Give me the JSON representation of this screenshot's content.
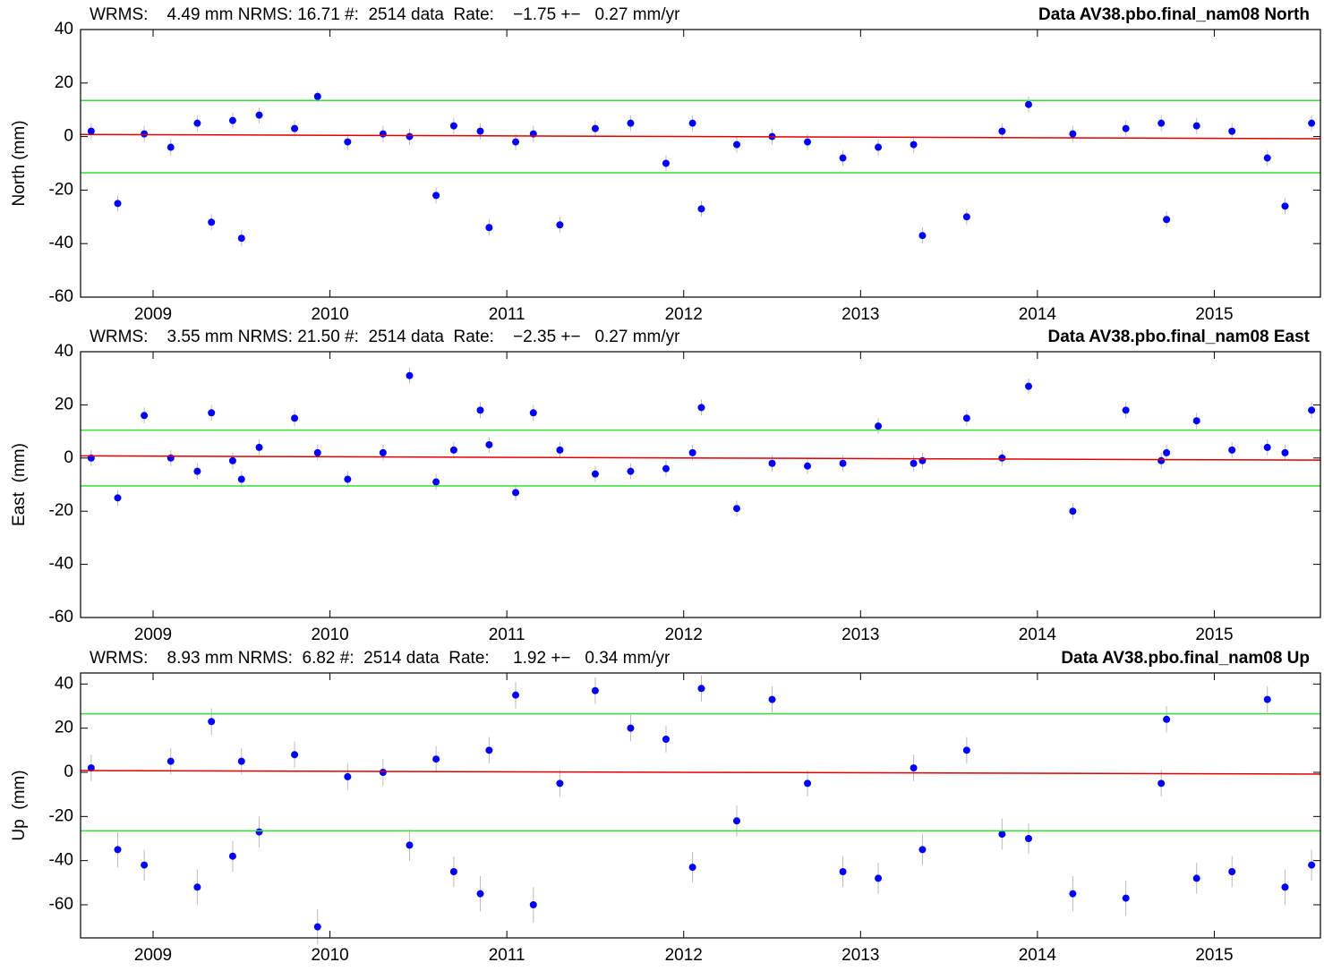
{
  "chart_data": [
    {
      "type": "scatter",
      "title": "Data AV38.pbo.final_nam08 North",
      "subtitle": "WRMS:    4.49 mm NRMS: 16.71 #:  2514 data  Rate:    −1.75 +−   0.27 mm/yr",
      "ylabel": "North (mm)",
      "x": [
        2008.65,
        2008.8,
        2008.95,
        2009.1,
        2009.25,
        2009.33,
        2009.45,
        2009.5,
        2009.6,
        2009.8,
        2009.93,
        2010.1,
        2010.3,
        2010.45,
        2010.6,
        2010.7,
        2010.85,
        2010.9,
        2011.05,
        2011.15,
        2011.3,
        2011.5,
        2011.7,
        2011.9,
        2012.05,
        2012.1,
        2012.3,
        2012.5,
        2012.7,
        2012.9,
        2013.1,
        2013.3,
        2013.35,
        2013.6,
        2013.8,
        2013.95,
        2014.2,
        2014.5,
        2014.7,
        2014.73,
        2014.9,
        2015.1,
        2015.3,
        2015.4,
        2015.55
      ],
      "series": [
        {
          "color": "#0000ff",
          "values": [
            2,
            -25,
            1,
            -4,
            5,
            -32,
            6,
            -38,
            8,
            3,
            15,
            -2,
            1,
            0,
            -22,
            4,
            2,
            -34,
            -2,
            1,
            -33,
            3,
            5,
            -10,
            5,
            -27,
            -3,
            0,
            -2,
            -8,
            -4,
            -3,
            -37,
            -30,
            2,
            12,
            1,
            3,
            5,
            -31,
            4,
            2,
            -8,
            -26,
            5
          ],
          "errors": [
            3,
            3,
            3,
            3,
            3,
            3,
            3,
            3,
            3,
            3,
            2,
            3,
            3,
            3,
            3,
            3,
            3,
            3,
            3,
            3,
            3,
            3,
            3,
            3,
            3,
            3,
            3,
            3,
            3,
            3,
            3,
            3,
            3,
            3,
            3,
            3,
            3,
            3,
            3,
            3,
            3,
            3,
            3,
            3,
            3
          ]
        }
      ],
      "sigma_lines": [
        13.5,
        -13.5
      ],
      "fit": [
        0.8,
        -0.8
      ],
      "xlim": [
        2008.59,
        2015.6
      ],
      "xticks": [
        2009,
        2010,
        2011,
        2012,
        2013,
        2014,
        2015
      ],
      "ylim": [
        -60,
        40
      ],
      "yticks": [
        -60,
        -40,
        -20,
        0,
        20,
        40
      ]
    },
    {
      "type": "scatter",
      "title": "Data AV38.pbo.final_nam08 East",
      "subtitle": "WRMS:    3.55 mm NRMS: 21.50 #:  2514 data  Rate:    −2.35 +−   0.27 mm/yr",
      "ylabel": "East  (mm)",
      "x": [
        2008.65,
        2008.8,
        2008.95,
        2009.1,
        2009.25,
        2009.33,
        2009.45,
        2009.5,
        2009.6,
        2009.8,
        2009.93,
        2010.1,
        2010.3,
        2010.45,
        2010.6,
        2010.7,
        2010.85,
        2010.9,
        2011.05,
        2011.15,
        2011.3,
        2011.5,
        2011.7,
        2011.9,
        2012.05,
        2012.1,
        2012.3,
        2012.5,
        2012.7,
        2012.9,
        2013.1,
        2013.3,
        2013.35,
        2013.6,
        2013.8,
        2013.95,
        2014.2,
        2014.5,
        2014.7,
        2014.73,
        2014.9,
        2015.1,
        2015.3,
        2015.4,
        2015.55
      ],
      "series": [
        {
          "color": "#0000ff",
          "values": [
            0,
            -15,
            16,
            0,
            -5,
            17,
            -1,
            -8,
            4,
            15,
            2,
            -8,
            2,
            31,
            -9,
            3,
            18,
            5,
            -13,
            17,
            3,
            -6,
            -5,
            -4,
            2,
            19,
            -19,
            -2,
            -3,
            -2,
            12,
            -2,
            -1,
            15,
            0,
            27,
            -20,
            18,
            -1,
            2,
            14,
            3,
            4,
            2,
            18
          ],
          "errors": [
            3,
            3,
            3,
            3,
            3,
            3,
            3,
            3,
            3,
            3,
            3,
            3,
            3,
            3,
            3,
            3,
            3,
            3,
            3,
            3,
            3,
            3,
            3,
            3,
            3,
            3,
            3,
            3,
            3,
            3,
            3,
            3,
            3,
            3,
            3,
            3,
            3,
            3,
            3,
            3,
            3,
            3,
            3,
            3,
            3
          ]
        }
      ],
      "sigma_lines": [
        10.5,
        -10.5
      ],
      "fit": [
        0.8,
        -0.8
      ],
      "xlim": [
        2008.59,
        2015.6
      ],
      "xticks": [
        2009,
        2010,
        2011,
        2012,
        2013,
        2014,
        2015
      ],
      "ylim": [
        -60,
        40
      ],
      "yticks": [
        -60,
        -40,
        -20,
        0,
        20,
        40
      ]
    },
    {
      "type": "scatter",
      "title": "Data AV38.pbo.final_nam08 Up",
      "subtitle": "WRMS:    8.93 mm NRMS:  6.82 #:  2514 data  Rate:     1.92 +−   0.34 mm/yr",
      "ylabel": "Up  (mm)",
      "x": [
        2008.65,
        2008.8,
        2008.95,
        2009.1,
        2009.25,
        2009.33,
        2009.45,
        2009.5,
        2009.6,
        2009.8,
        2009.93,
        2010.1,
        2010.3,
        2010.45,
        2010.6,
        2010.7,
        2010.85,
        2010.9,
        2011.05,
        2011.15,
        2011.3,
        2011.5,
        2011.7,
        2011.9,
        2012.05,
        2012.1,
        2012.3,
        2012.5,
        2012.7,
        2012.9,
        2013.1,
        2013.3,
        2013.35,
        2013.6,
        2013.8,
        2013.95,
        2014.2,
        2014.5,
        2014.7,
        2014.73,
        2014.9,
        2015.1,
        2015.3,
        2015.4,
        2015.55
      ],
      "series": [
        {
          "color": "#0000ff",
          "values": [
            2,
            -35,
            -42,
            5,
            -52,
            23,
            -38,
            5,
            -27,
            8,
            -70,
            -2,
            0,
            -33,
            6,
            -45,
            -55,
            10,
            35,
            -60,
            -5,
            37,
            20,
            15,
            -43,
            38,
            -22,
            33,
            -5,
            -45,
            -48,
            2,
            -35,
            10,
            -28,
            -30,
            -55,
            -57,
            -5,
            24,
            -48,
            -45,
            33,
            -52,
            -42
          ],
          "errors": [
            6,
            8,
            7,
            6,
            8,
            6,
            7,
            6,
            7,
            6,
            8,
            6,
            6,
            7,
            6,
            7,
            8,
            6,
            6,
            8,
            6,
            6,
            6,
            6,
            7,
            6,
            7,
            6,
            6,
            7,
            7,
            6,
            7,
            6,
            7,
            7,
            8,
            8,
            6,
            6,
            7,
            7,
            6,
            8,
            7
          ]
        }
      ],
      "sigma_lines": [
        26.5,
        -26.5
      ],
      "fit": [
        0.8,
        -0.8
      ],
      "xlim": [
        2008.59,
        2015.6
      ],
      "xticks": [
        2009,
        2010,
        2011,
        2012,
        2013,
        2014,
        2015
      ],
      "ylim": [
        -75,
        45
      ],
      "yticks": [
        -60,
        -40,
        -20,
        0,
        20,
        40
      ]
    }
  ]
}
